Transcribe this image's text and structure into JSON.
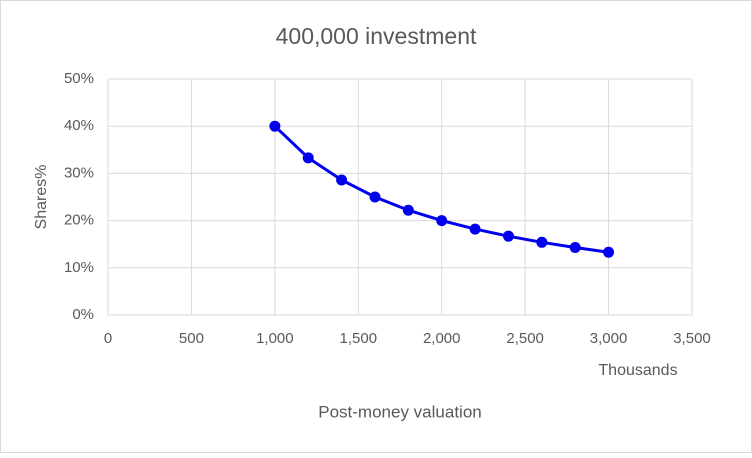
{
  "chart_data": {
    "type": "line",
    "title": "400,000 investment",
    "x_label": "Post-money valuation",
    "x_units_label": "Thousands",
    "y_label": "Shares%",
    "x": [
      1000,
      1200,
      1400,
      1600,
      1800,
      2000,
      2200,
      2400,
      2600,
      2800,
      3000
    ],
    "values": [
      40,
      33.3,
      28.6,
      25,
      22.2,
      20,
      18.2,
      16.7,
      15.4,
      14.3,
      13.3
    ],
    "color": "#0000ee",
    "xlim": [
      0,
      3500
    ],
    "xticks": [
      0,
      500,
      {
        "value": 1000,
        "label": "1,000"
      },
      {
        "value": 1500,
        "label": "1,500"
      },
      {
        "value": 2000,
        "label": "2,000"
      },
      {
        "value": 2500,
        "label": "2,500"
      },
      {
        "value": 3000,
        "label": "3,000"
      },
      {
        "value": 3500,
        "label": "3,500"
      }
    ],
    "ylim": [
      0,
      50
    ],
    "yticks": [
      {
        "value": 0,
        "label": "0%"
      },
      {
        "value": 10,
        "label": "10%"
      },
      {
        "value": 20,
        "label": "20%"
      },
      {
        "value": 30,
        "label": "30%"
      },
      {
        "value": 40,
        "label": "40%"
      },
      {
        "value": 50,
        "label": "50%"
      }
    ],
    "grid": true
  }
}
